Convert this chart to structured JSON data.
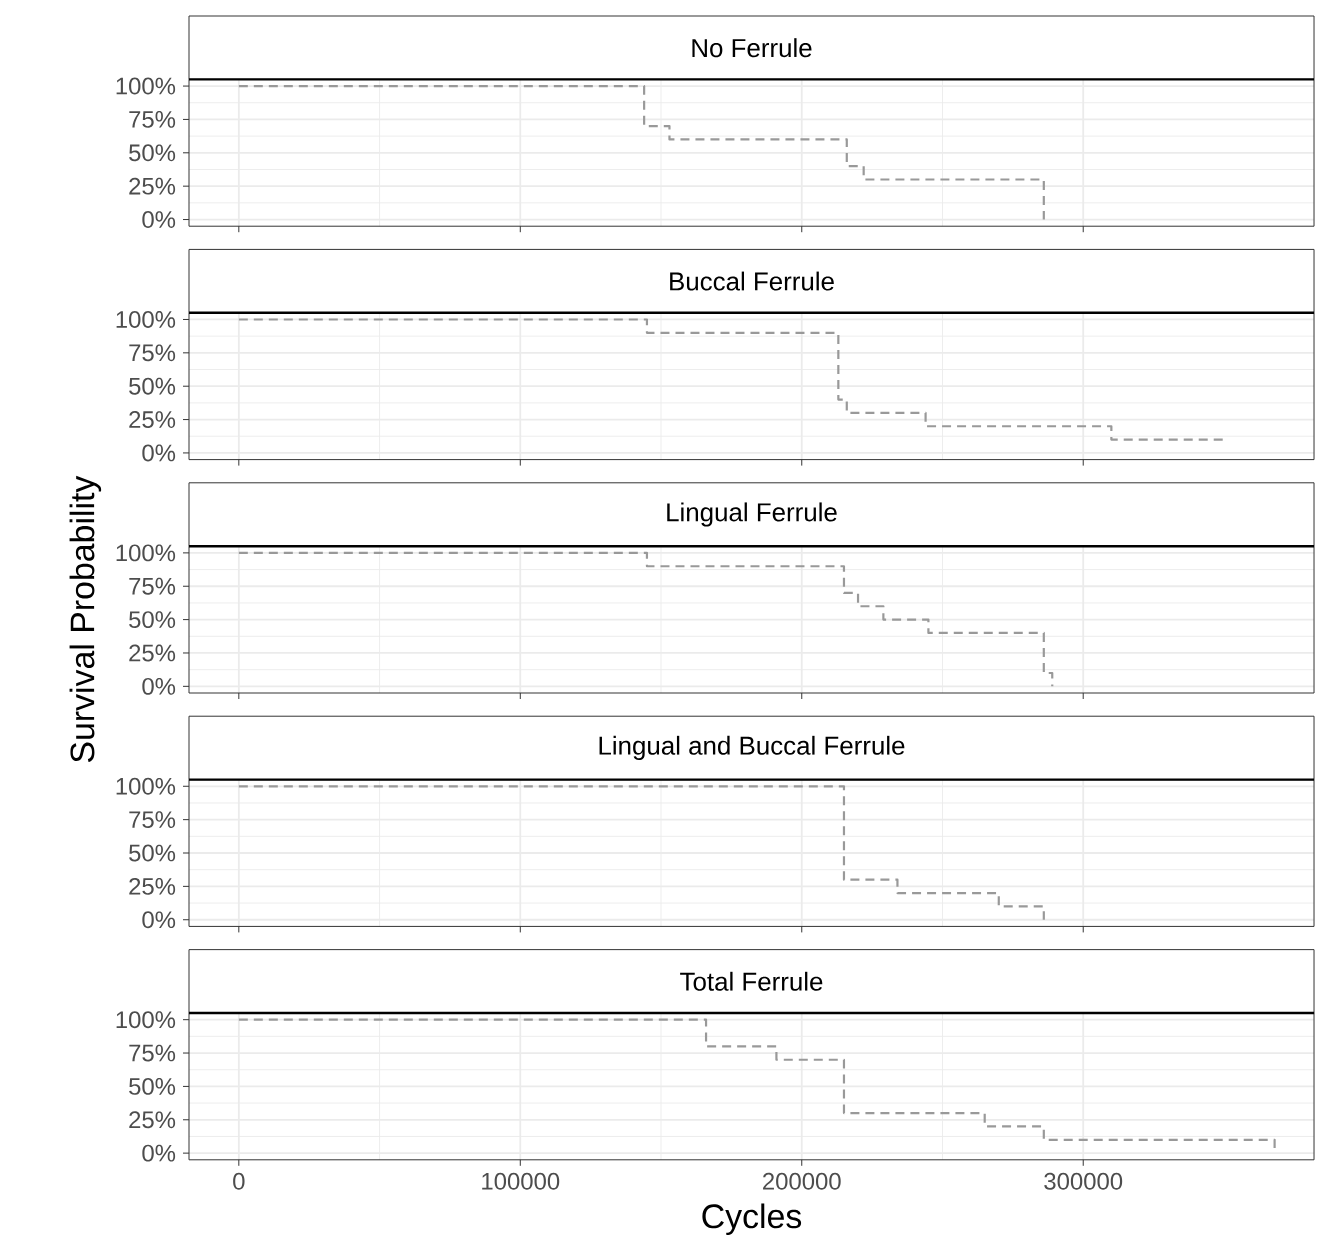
{
  "chart_data": [
    {
      "type": "step",
      "title": "No Ferrule",
      "x": [
        0,
        144000,
        153000,
        216000,
        222000,
        286000
      ],
      "values": [
        100,
        70,
        60,
        40,
        30,
        0
      ],
      "color": "#999999",
      "line_style": "dashed",
      "xlim": [
        -17700,
        382000
      ],
      "ylim": [
        -5,
        105
      ],
      "xticks": [
        0,
        100000,
        200000,
        300000
      ],
      "yticks": [
        {
          "value": 0,
          "label": "0%"
        },
        {
          "value": 25,
          "label": "25%"
        },
        {
          "value": 50,
          "label": "50%"
        },
        {
          "value": 75,
          "label": "75%"
        },
        {
          "value": 100,
          "label": "100%"
        }
      ],
      "grid": true,
      "tick_labels": "y"
    },
    {
      "type": "step",
      "title": "Buccal Ferrule",
      "x": [
        0,
        145000,
        213000,
        216000,
        244000,
        310000,
        351000
      ],
      "values": [
        100,
        90,
        40,
        30,
        20,
        10,
        10
      ],
      "color": "#999999",
      "line_style": "dashed",
      "xlim": [
        -17700,
        382000
      ],
      "ylim": [
        -5,
        105
      ],
      "xticks": [
        0,
        100000,
        200000,
        300000
      ],
      "yticks": [
        {
          "value": 0,
          "label": "0%"
        },
        {
          "value": 25,
          "label": "25%"
        },
        {
          "value": 50,
          "label": "50%"
        },
        {
          "value": 75,
          "label": "75%"
        },
        {
          "value": 100,
          "label": "100%"
        }
      ],
      "grid": true,
      "tick_labels": "y"
    },
    {
      "type": "step",
      "title": "Lingual Ferrule",
      "ylabel": "Survival Probability",
      "x": [
        0,
        145000,
        215000,
        220000,
        229000,
        245000,
        286000,
        289000
      ],
      "values": [
        100,
        90,
        70,
        60,
        50,
        40,
        10,
        0
      ],
      "color": "#999999",
      "line_style": "dashed",
      "xlim": [
        -17700,
        382000
      ],
      "ylim": [
        -5,
        105
      ],
      "xticks": [
        0,
        100000,
        200000,
        300000
      ],
      "yticks": [
        {
          "value": 0,
          "label": "0%"
        },
        {
          "value": 25,
          "label": "25%"
        },
        {
          "value": 50,
          "label": "50%"
        },
        {
          "value": 75,
          "label": "75%"
        },
        {
          "value": 100,
          "label": "100%"
        }
      ],
      "grid": true,
      "tick_labels": "y"
    },
    {
      "type": "step",
      "title": "Lingual and Buccal Ferrule",
      "x": [
        0,
        215000,
        234000,
        270000,
        286000
      ],
      "values": [
        100,
        30,
        20,
        10,
        0
      ],
      "color": "#999999",
      "line_style": "dashed",
      "xlim": [
        -17700,
        382000
      ],
      "ylim": [
        -5,
        105
      ],
      "xticks": [
        0,
        100000,
        200000,
        300000
      ],
      "yticks": [
        {
          "value": 0,
          "label": "0%"
        },
        {
          "value": 25,
          "label": "25%"
        },
        {
          "value": 50,
          "label": "50%"
        },
        {
          "value": 75,
          "label": "75%"
        },
        {
          "value": 100,
          "label": "100%"
        }
      ],
      "grid": true,
      "tick_labels": "y"
    },
    {
      "type": "step",
      "title": "Total Ferrule",
      "xlabel": "Cycles",
      "x": [
        0,
        166000,
        191000,
        215000,
        265000,
        286000,
        368000
      ],
      "values": [
        100,
        80,
        70,
        30,
        20,
        10,
        0
      ],
      "color": "#999999",
      "line_style": "dashed",
      "xlim": [
        -17700,
        382000
      ],
      "ylim": [
        -5,
        105
      ],
      "xticks": [
        0,
        100000,
        200000,
        300000
      ],
      "yticks": [
        {
          "value": 0,
          "label": "0%"
        },
        {
          "value": 25,
          "label": "25%"
        },
        {
          "value": 50,
          "label": "50%"
        },
        {
          "value": 75,
          "label": "75%"
        },
        {
          "value": 100,
          "label": "100%"
        }
      ],
      "grid": true
    }
  ]
}
